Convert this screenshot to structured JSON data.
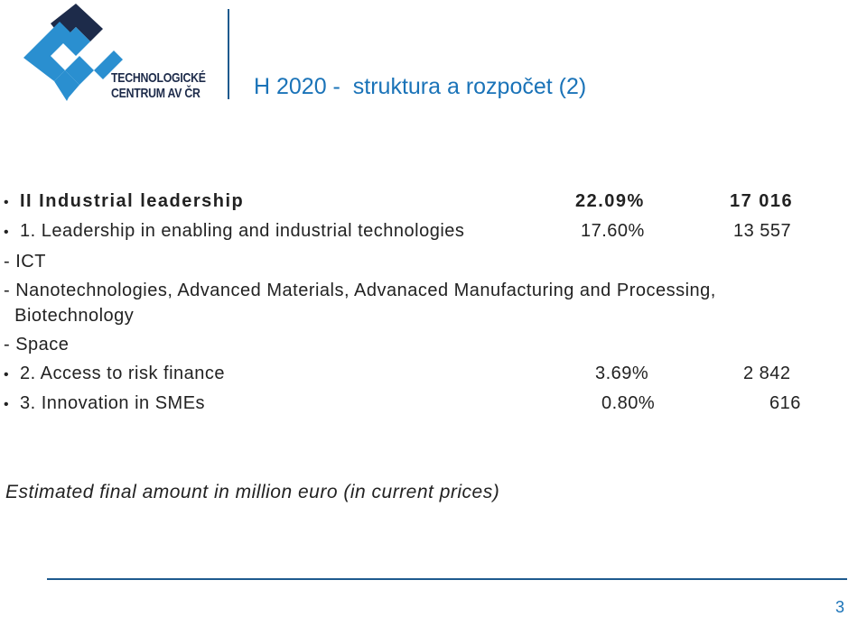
{
  "header": {
    "logo_line1": "TECHNOLOGICKÉ",
    "logo_line2": "CENTRUM AV ČR",
    "title": "H 2020 -  struktura a rozpočet (2)"
  },
  "content": {
    "rows": [
      {
        "bullet": "•",
        "label": "II Industrial leadership",
        "percent": "22.09%",
        "amount": "17 016"
      },
      {
        "bullet": "•",
        "label": "1. Leadership in enabling and industrial technologies",
        "percent": "17.60%",
        "amount": "13 557"
      },
      {
        "bullet": "",
        "label": "- ICT",
        "percent": "",
        "amount": ""
      },
      {
        "bullet": "",
        "label": "- Nanotechnologies, Advanced Materials, Advanaced Manufacturing and Processing,",
        "percent": "",
        "amount": ""
      },
      {
        "bullet": "",
        "label": "  Biotechnology",
        "percent": "",
        "amount": ""
      },
      {
        "bullet": "",
        "label": "- Space",
        "percent": "",
        "amount": ""
      },
      {
        "bullet": "•",
        "label": "2. Access to risk finance",
        "percent": "3.69%",
        "amount": "2 842"
      },
      {
        "bullet": "•",
        "label": "3. Innovation in SMEs",
        "percent": "0.80%",
        "amount": "616"
      }
    ]
  },
  "footnote": "Estimated final amount in million euro (in current prices)",
  "footer": {
    "page_number": "3"
  },
  "colors": {
    "logo_blue": "#2a8fd0",
    "logo_navy": "#1d2b4a",
    "title_blue": "#1a73b8",
    "rule_blue": "#1e5a8e"
  }
}
